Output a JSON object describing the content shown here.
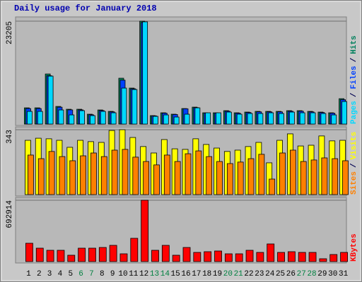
{
  "chart_data": [
    {
      "type": "bar",
      "title": "Daily usage for January 2018",
      "categories": [
        "1",
        "2",
        "3",
        "4",
        "5",
        "6",
        "7",
        "8",
        "9",
        "10",
        "11",
        "12",
        "13",
        "14",
        "15",
        "16",
        "17",
        "18",
        "19",
        "20",
        "21",
        "22",
        "23",
        "24",
        "25",
        "26",
        "27",
        "28",
        "29",
        "30",
        "31"
      ],
      "category_colors": [
        "#000",
        "#000",
        "#000",
        "#000",
        "#000",
        "#008040",
        "#008040",
        "#000",
        "#000",
        "#000",
        "#000",
        "#000",
        "#008040",
        "#008040",
        "#000",
        "#000",
        "#000",
        "#000",
        "#000",
        "#008040",
        "#008040",
        "#000",
        "#000",
        "#000",
        "#000",
        "#000",
        "#008040",
        "#008040",
        "#000",
        "#000",
        "#000"
      ],
      "legend_separator": "/",
      "ylim": [
        0,
        23205
      ],
      "yticks": [
        23205
      ],
      "series": [
        {
          "name": "Hits",
          "color": "#00805c",
          "values": [
            3657,
            3657,
            11289,
            3975,
            3339,
            3339,
            2226,
            3180,
            2862,
            10335,
            8109,
            23205,
            1908,
            2544,
            2226,
            3498,
            3816,
            2544,
            2544,
            3021,
            2544,
            2703,
            2862,
            2862,
            2862,
            3021,
            3021,
            2862,
            2703,
            2544,
            5724
          ]
        },
        {
          "name": "Files",
          "color": "#0040ff",
          "values": [
            3500,
            3500,
            10900,
            3800,
            3200,
            3200,
            2100,
            3050,
            2750,
            9900,
            7950,
            22900,
            1850,
            2450,
            2150,
            3450,
            3700,
            2480,
            2480,
            2900,
            2450,
            2600,
            2750,
            2750,
            2750,
            2900,
            2900,
            2750,
            2600,
            2450,
            5500
          ]
        },
        {
          "name": "Pages",
          "color": "#00d8ff",
          "values": [
            2862,
            2862,
            10812,
            3180,
            2067,
            3021,
            1908,
            2862,
            2544,
            8109,
            7791,
            23055,
            1749,
            2067,
            1590,
            2226,
            3657,
            2544,
            2544,
            2703,
            2226,
            2385,
            2385,
            2544,
            2385,
            2703,
            2544,
            2544,
            2385,
            2067,
            5088
          ]
        }
      ]
    },
    {
      "type": "bar",
      "ylim": [
        0,
        343
      ],
      "yticks": [
        343
      ],
      "series": [
        {
          "name": "Visits",
          "color": "#ffff00",
          "values": [
            287,
            298,
            295,
            287,
            250,
            287,
            280,
            276,
            339,
            343,
            302,
            254,
            220,
            291,
            242,
            239,
            295,
            265,
            246,
            228,
            235,
            254,
            276,
            168,
            287,
            321,
            257,
            261,
            310,
            284,
            287
          ]
        },
        {
          "name": "Sites",
          "color": "#ff8000",
          "values": [
            209,
            190,
            228,
            201,
            179,
            205,
            220,
            201,
            235,
            239,
            198,
            175,
            157,
            209,
            175,
            216,
            231,
            201,
            175,
            164,
            172,
            190,
            213,
            82,
            220,
            235,
            175,
            183,
            194,
            190,
            179
          ]
        }
      ]
    },
    {
      "type": "bar",
      "ylim": [
        0,
        692914
      ],
      "yticks": [
        692914
      ],
      "series": [
        {
          "name": "KBytes",
          "color": "#ff0000",
          "values": [
            207090,
            151335,
            127440,
            127440,
            71685,
            151335,
            151335,
            159300,
            183195,
            87615,
            262845,
            692914,
            127440,
            183195,
            71685,
            159300,
            103545,
            111510,
            119475,
            87615,
            87615,
            127440,
            103545,
            199125,
            103545,
            111510,
            103545,
            103545,
            31860,
            79650,
            103545
          ]
        }
      ]
    }
  ]
}
